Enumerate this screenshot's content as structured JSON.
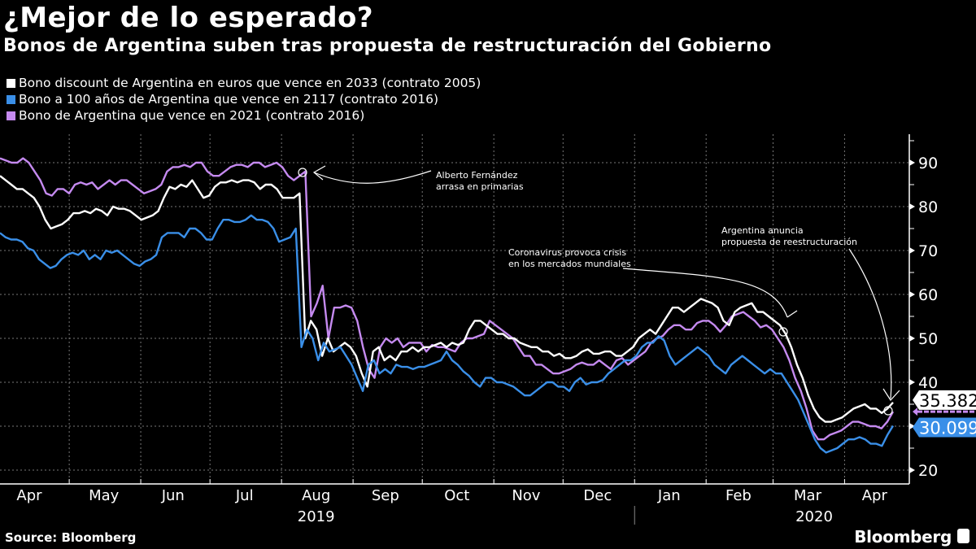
{
  "header": {
    "title": "¿Mejor de lo esperado?",
    "subtitle": "Bonos de Argentina suben tras propuesta de restructuración del Gobierno"
  },
  "footer": {
    "source": "Source: Bloomberg",
    "brand": "Bloomberg"
  },
  "colors": {
    "background": "#000000",
    "discount_2033": "#ffffff",
    "century_2117": "#3a8fe8",
    "bond_2021": "#c58af0"
  },
  "chart_data": {
    "type": "line",
    "title": "¿Mejor de lo esperado?",
    "subtitle": "Bonos de Argentina suben tras propuesta de restructuración del Gobierno",
    "xlabel": "",
    "ylabel": "",
    "ylim": [
      17,
      96
    ],
    "yticks": [
      20,
      30,
      40,
      50,
      60,
      70,
      80,
      90
    ],
    "grid": true,
    "legend_position": "top-left",
    "x_month_labels": [
      "Apr",
      "May",
      "Jun",
      "Jul",
      "Aug",
      "Sep",
      "Oct",
      "Nov",
      "Dec",
      "Jan",
      "Feb",
      "Mar",
      "Apr"
    ],
    "x_year_labels": [
      {
        "label": "2019",
        "under": "Aug"
      },
      {
        "label": "2020",
        "under": "Mar"
      }
    ],
    "x_start": "2019-04-01",
    "x_end": "2020-04-22",
    "x_step_days": 3,
    "series": [
      {
        "name": "Bono discount de Argentina en euros que vence en 2033 (contrato 2005)",
        "color_key": "discount_2033",
        "last_value_label": "35.382",
        "values": [
          87,
          86,
          85,
          84,
          84,
          83,
          82,
          80,
          77,
          75,
          75.5,
          76,
          77,
          78.5,
          78.5,
          79,
          78.5,
          79.5,
          79,
          78,
          80,
          79.5,
          79.5,
          79,
          78,
          77,
          77.5,
          78,
          79,
          82,
          84.5,
          84,
          85,
          84.5,
          86,
          84,
          82,
          82.5,
          84.5,
          85.5,
          85.5,
          86,
          85.5,
          86,
          86,
          85.5,
          84,
          85,
          85,
          84,
          82,
          82,
          82,
          83,
          50,
          54,
          52,
          46,
          50,
          47,
          48,
          49,
          48,
          46,
          42,
          39,
          47,
          48,
          45,
          46,
          45,
          47,
          47,
          48,
          47,
          48,
          48,
          48.5,
          49,
          48,
          49,
          48.5,
          49,
          52,
          54,
          54,
          53,
          52,
          51,
          51,
          50,
          50,
          49,
          48.5,
          48,
          48,
          47,
          47,
          46,
          46.5,
          45.5,
          45.5,
          46,
          47,
          47.5,
          46.5,
          46.5,
          47,
          47,
          46,
          46,
          47,
          48,
          50,
          51,
          52,
          51,
          53,
          55,
          57,
          57,
          56,
          57,
          58,
          59,
          58.5,
          58,
          57,
          54,
          53,
          56,
          57,
          57.5,
          58,
          56,
          56,
          55,
          54,
          53,
          51,
          48,
          44,
          41,
          37,
          34,
          32,
          31,
          31,
          31.5,
          32,
          33,
          34,
          34.5,
          35,
          34,
          34,
          33,
          34,
          35.4
        ]
      },
      {
        "name": "Bono a 100 años de Argentina que vence en 2117 (contrato 2016)",
        "color_key": "century_2117",
        "last_value_label": "30.099",
        "values": [
          74,
          73,
          72.5,
          72.5,
          72,
          70.5,
          70,
          68,
          67,
          66,
          66.5,
          68,
          69,
          69.5,
          69,
          70,
          68,
          69,
          68,
          70,
          69.5,
          70,
          69,
          68,
          67,
          66.5,
          67.5,
          68,
          69,
          73,
          74,
          74,
          74,
          73,
          75,
          75,
          74,
          72.5,
          72.5,
          75,
          77,
          77,
          76.5,
          76.5,
          77,
          78,
          77,
          77,
          76.5,
          75,
          72,
          72.5,
          73,
          75,
          48,
          52,
          50,
          45,
          49,
          47,
          47.5,
          48,
          46,
          44,
          41,
          38,
          44,
          45,
          42,
          43,
          42,
          44,
          43.5,
          43.5,
          43,
          43.5,
          43.5,
          44,
          44.5,
          45,
          47,
          45,
          44,
          42.5,
          41.5,
          40,
          39,
          41,
          41,
          40,
          40,
          39.5,
          39,
          38,
          37,
          37,
          38,
          39,
          40,
          40,
          39,
          39,
          38,
          40,
          41,
          39.5,
          40,
          40,
          40.5,
          42,
          43,
          44,
          45,
          45,
          46,
          48,
          49,
          49,
          50.5,
          49.5,
          46,
          44,
          45,
          46,
          47,
          48,
          47,
          46,
          44,
          43,
          42,
          44,
          45,
          46,
          45,
          44,
          43,
          42,
          43,
          42,
          42,
          40,
          38,
          36,
          33,
          30,
          27,
          25,
          24,
          24.5,
          25,
          26,
          27,
          27,
          27.5,
          27,
          26,
          26,
          25.5,
          28,
          30.1
        ]
      },
      {
        "name": "Bono de Argentina que vence en 2021 (contrato 2016)",
        "color_key": "bond_2021",
        "last_value_label": "",
        "values": [
          91,
          90.5,
          90,
          90,
          91,
          90,
          88,
          86,
          83,
          82.5,
          84,
          84,
          83,
          85,
          85.5,
          85,
          85.5,
          84,
          85,
          86,
          85,
          86,
          86,
          85,
          84,
          83,
          83.5,
          84,
          85,
          88,
          89,
          89,
          89.5,
          89,
          90,
          90,
          88,
          87,
          87,
          88,
          89,
          89.5,
          89.5,
          89,
          90,
          90,
          89,
          89.5,
          90,
          89,
          87,
          86,
          87,
          88,
          55,
          58,
          62,
          50,
          57,
          57,
          57.5,
          57,
          54,
          48,
          43,
          41,
          48,
          50,
          49,
          50,
          48,
          49,
          49,
          49,
          47,
          48.5,
          48,
          48,
          47.5,
          47,
          49,
          50,
          50,
          50.5,
          51,
          54,
          53,
          52,
          51,
          50,
          48,
          46,
          46,
          44,
          44,
          43,
          42,
          42,
          42.5,
          43,
          44,
          44.5,
          44,
          44,
          45,
          44,
          43,
          45,
          45.5,
          44,
          45,
          46,
          47,
          49,
          50,
          50.5,
          52,
          53,
          53,
          52,
          52,
          53.5,
          54,
          54,
          53,
          51.5,
          53,
          55,
          55.5,
          56,
          55,
          54,
          52.5,
          53,
          52,
          50,
          48,
          45,
          41,
          38,
          34,
          29,
          27,
          27,
          28,
          28.5,
          29,
          30,
          31,
          31,
          30.5,
          30,
          30,
          29.5,
          31,
          33.3
        ]
      }
    ],
    "annotations": [
      {
        "text_line1": "Alberto Fernández",
        "text_line2": "arrasa en primarias",
        "date": "2019-08-09"
      },
      {
        "text_line1": "Coronavirus provoca crisis",
        "text_line2": "en los mercados mundiales",
        "date": "2020-02-24"
      },
      {
        "text_line1": "Argentina anuncia",
        "text_line2": "propuesta de reestructuración",
        "date": "2020-04-17"
      }
    ]
  }
}
